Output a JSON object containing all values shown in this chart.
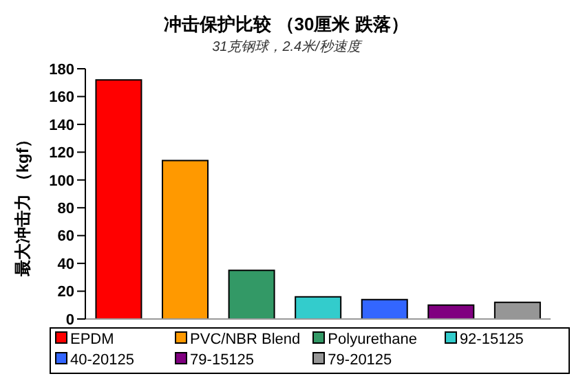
{
  "chart_data": {
    "type": "bar",
    "title": "冲击保护比较 （30厘米 跌落）",
    "subtitle": "31克钢球，2.4米/秒速度",
    "ylabel": "最大冲击力 （kgf）",
    "categories": [
      null,
      null,
      null,
      null,
      null,
      null,
      null
    ],
    "series": [
      {
        "name": "EPDM",
        "color": "#ff0000",
        "values": [
          172,
          null,
          null,
          null,
          null,
          null,
          null
        ]
      },
      {
        "name": "PVC/NBR Blend",
        "color": "#ff9900",
        "values": [
          null,
          114,
          null,
          null,
          null,
          null,
          null
        ]
      },
      {
        "name": "Polyurethane",
        "color": "#339966",
        "values": [
          null,
          null,
          35,
          null,
          null,
          null,
          null
        ]
      },
      {
        "name": "92-15125",
        "color": "#33cccc",
        "values": [
          null,
          null,
          null,
          16,
          null,
          null,
          null
        ]
      },
      {
        "name": "40-20125",
        "color": "#3366ff",
        "values": [
          null,
          null,
          null,
          null,
          14,
          null,
          null
        ]
      },
      {
        "name": "79-15125",
        "color": "#800080",
        "values": [
          null,
          null,
          null,
          null,
          null,
          10,
          null
        ]
      },
      {
        "name": "79-20125",
        "color": "#969696",
        "values": [
          null,
          null,
          null,
          null,
          null,
          null,
          12
        ]
      }
    ],
    "ylim": [
      0,
      180
    ],
    "yticks": [
      0,
      20,
      40,
      60,
      80,
      100,
      120,
      140,
      160,
      180
    ],
    "legend": "bottom",
    "tick_labels": "y"
  }
}
